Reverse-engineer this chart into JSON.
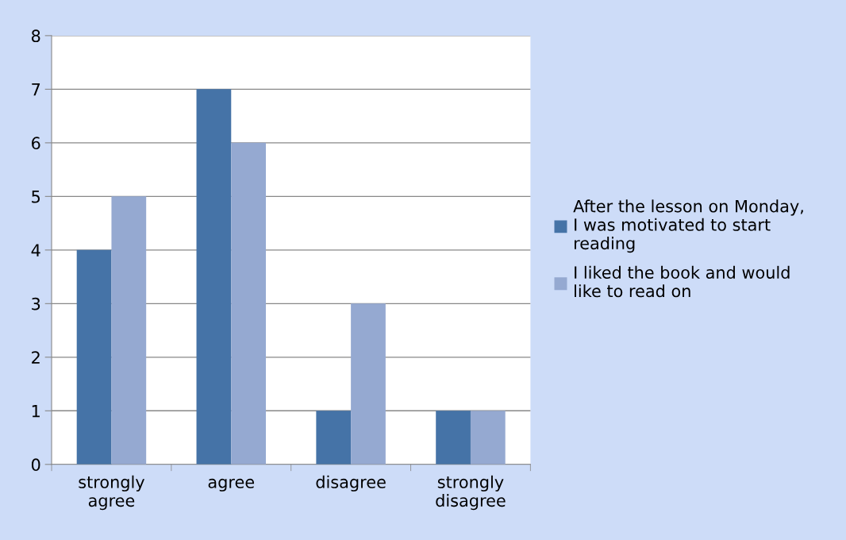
{
  "chart_data": {
    "type": "bar",
    "categories": [
      "strongly\nagree",
      "agree",
      "disagree",
      "strongly\ndisagree"
    ],
    "series": [
      {
        "name": "After the lesson on Monday, I was motivated to start reading",
        "color": "#4573a7",
        "values": [
          4,
          7,
          1,
          1
        ]
      },
      {
        "name": "I liked the book and would like to read on",
        "color": "#95a9d1",
        "values": [
          5,
          6,
          3,
          1
        ]
      }
    ],
    "ylim": [
      0,
      8
    ],
    "yticks": [
      0,
      1,
      2,
      3,
      4,
      5,
      6,
      7,
      8
    ],
    "grid": "y",
    "legend": "right"
  }
}
